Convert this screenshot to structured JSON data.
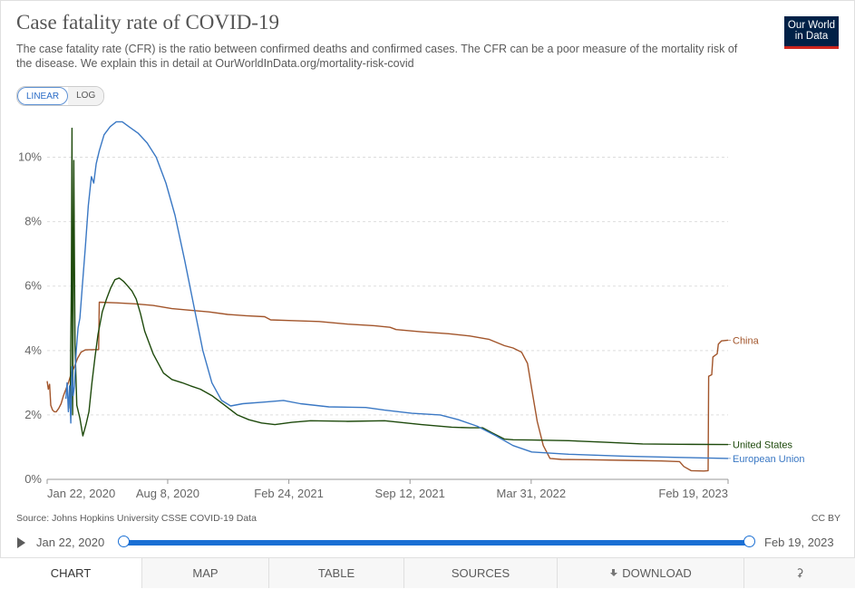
{
  "header": {
    "title": "Case fatality rate of COVID-19",
    "subtitle": "The case fatality rate (CFR) is the ratio between confirmed deaths and confirmed cases. The CFR can be a poor measure of the mortality risk of the disease. We explain this in detail at OurWorldInData.org/mortality-risk-covid",
    "logo_line1": "Our World",
    "logo_line2": "in Data"
  },
  "scale": {
    "linear": "LINEAR",
    "log": "LOG",
    "selected": "LINEAR"
  },
  "footer": {
    "source": "Source: Johns Hopkins University CSSE COVID-19 Data",
    "license": "CC BY"
  },
  "timeline": {
    "start": "Jan 22, 2020",
    "end": "Feb 19, 2023"
  },
  "tabs": {
    "chart": "CHART",
    "map": "MAP",
    "table": "TABLE",
    "sources": "SOURCES",
    "download": "DOWNLOAD"
  },
  "colors": {
    "china": "#a2552b",
    "united_states": "#1e4a0c",
    "european_union": "#3a78c4",
    "grid": "#dddddd",
    "accent": "#1a6fd4"
  },
  "chart_data": {
    "type": "line",
    "title": "Case fatality rate of COVID-19",
    "ylim": [
      0,
      11
    ],
    "yticks": [
      0,
      2,
      4,
      6,
      8,
      10
    ],
    "ytick_labels": [
      "0%",
      "2%",
      "4%",
      "6%",
      "8%",
      "10%"
    ],
    "xlim": [
      "2020-01-22",
      "2023-02-19"
    ],
    "xticks": [
      "2020-01-22",
      "2020-08-08",
      "2021-02-24",
      "2021-09-12",
      "2022-03-31",
      "2023-02-19"
    ],
    "xtick_labels": [
      "Jan 22, 2020",
      "Aug 8, 2020",
      "Feb 24, 2021",
      "Sep 12, 2021",
      "Mar 31, 2022",
      "Feb 19, 2023"
    ],
    "grid": true,
    "legend": "end-of-line labels",
    "series": [
      {
        "name": "China",
        "color": "#a2552b",
        "points": [
          [
            "2020-01-22",
            3.05
          ],
          [
            "2020-01-24",
            2.8
          ],
          [
            "2020-01-26",
            2.95
          ],
          [
            "2020-01-28",
            2.3
          ],
          [
            "2020-01-31",
            2.15
          ],
          [
            "2020-02-03",
            2.1
          ],
          [
            "2020-02-06",
            2.1
          ],
          [
            "2020-02-10",
            2.2
          ],
          [
            "2020-02-14",
            2.35
          ],
          [
            "2020-02-18",
            2.6
          ],
          [
            "2020-02-22",
            2.8
          ],
          [
            "2020-02-26",
            3.0
          ],
          [
            "2020-03-02",
            3.3
          ],
          [
            "2020-03-07",
            3.5
          ],
          [
            "2020-03-12",
            3.75
          ],
          [
            "2020-03-18",
            3.95
          ],
          [
            "2020-03-25",
            4.02
          ],
          [
            "2020-04-10",
            4.03
          ],
          [
            "2020-04-16",
            4.03
          ],
          [
            "2020-04-17",
            5.5
          ],
          [
            "2020-05-15",
            5.48
          ],
          [
            "2020-06-15",
            5.45
          ],
          [
            "2020-07-15",
            5.4
          ],
          [
            "2020-08-15",
            5.3
          ],
          [
            "2020-09-15",
            5.25
          ],
          [
            "2020-10-15",
            5.2
          ],
          [
            "2020-11-15",
            5.12
          ],
          [
            "2020-12-15",
            5.08
          ],
          [
            "2021-01-15",
            5.05
          ],
          [
            "2021-01-25",
            4.95
          ],
          [
            "2021-03-01",
            4.93
          ],
          [
            "2021-04-15",
            4.9
          ],
          [
            "2021-06-01",
            4.82
          ],
          [
            "2021-07-15",
            4.77
          ],
          [
            "2021-08-10",
            4.72
          ],
          [
            "2021-08-20",
            4.65
          ],
          [
            "2021-10-01",
            4.58
          ],
          [
            "2021-11-15",
            4.52
          ],
          [
            "2021-12-20",
            4.45
          ],
          [
            "2022-01-20",
            4.35
          ],
          [
            "2022-02-15",
            4.15
          ],
          [
            "2022-03-01",
            4.08
          ],
          [
            "2022-03-15",
            3.95
          ],
          [
            "2022-03-25",
            3.6
          ],
          [
            "2022-04-01",
            2.8
          ],
          [
            "2022-04-10",
            1.8
          ],
          [
            "2022-04-20",
            1.05
          ],
          [
            "2022-05-01",
            0.65
          ],
          [
            "2022-05-20",
            0.62
          ],
          [
            "2022-07-01",
            0.61
          ],
          [
            "2022-09-01",
            0.59
          ],
          [
            "2022-11-01",
            0.57
          ],
          [
            "2022-12-01",
            0.55
          ],
          [
            "2022-12-08",
            0.4
          ],
          [
            "2022-12-20",
            0.27
          ],
          [
            "2023-01-10",
            0.26
          ],
          [
            "2023-01-17",
            0.27
          ],
          [
            "2023-01-18",
            3.2
          ],
          [
            "2023-01-23",
            3.25
          ],
          [
            "2023-01-25",
            3.8
          ],
          [
            "2023-02-01",
            3.9
          ],
          [
            "2023-02-03",
            4.2
          ],
          [
            "2023-02-08",
            4.3
          ],
          [
            "2023-02-19",
            4.32
          ]
        ]
      },
      {
        "name": "United States",
        "color": "#1e4a0c",
        "points": [
          [
            "2020-02-29",
            2.2
          ],
          [
            "2020-03-02",
            6.0
          ],
          [
            "2020-03-03",
            10.9
          ],
          [
            "2020-03-04",
            2.0
          ],
          [
            "2020-03-06",
            9.9
          ],
          [
            "2020-03-08",
            4.2
          ],
          [
            "2020-03-11",
            2.3
          ],
          [
            "2020-03-16",
            1.9
          ],
          [
            "2020-03-21",
            1.35
          ],
          [
            "2020-03-26",
            1.7
          ],
          [
            "2020-03-31",
            2.1
          ],
          [
            "2020-04-05",
            3.0
          ],
          [
            "2020-04-10",
            3.8
          ],
          [
            "2020-04-15",
            4.5
          ],
          [
            "2020-04-22",
            5.2
          ],
          [
            "2020-04-29",
            5.6
          ],
          [
            "2020-05-06",
            5.95
          ],
          [
            "2020-05-13",
            6.2
          ],
          [
            "2020-05-20",
            6.25
          ],
          [
            "2020-05-27",
            6.15
          ],
          [
            "2020-06-03",
            6.0
          ],
          [
            "2020-06-10",
            5.85
          ],
          [
            "2020-06-17",
            5.6
          ],
          [
            "2020-06-24",
            5.15
          ],
          [
            "2020-07-01",
            4.6
          ],
          [
            "2020-07-15",
            3.9
          ],
          [
            "2020-08-01",
            3.3
          ],
          [
            "2020-08-15",
            3.1
          ],
          [
            "2020-09-01",
            3.0
          ],
          [
            "2020-09-15",
            2.9
          ],
          [
            "2020-10-01",
            2.8
          ],
          [
            "2020-10-20",
            2.6
          ],
          [
            "2020-11-10",
            2.3
          ],
          [
            "2020-12-01",
            2.0
          ],
          [
            "2020-12-20",
            1.85
          ],
          [
            "2021-01-10",
            1.75
          ],
          [
            "2021-02-01",
            1.7
          ],
          [
            "2021-03-01",
            1.77
          ],
          [
            "2021-04-01",
            1.82
          ],
          [
            "2021-06-01",
            1.8
          ],
          [
            "2021-08-01",
            1.82
          ],
          [
            "2021-10-01",
            1.7
          ],
          [
            "2021-11-20",
            1.62
          ],
          [
            "2021-12-20",
            1.6
          ],
          [
            "2022-01-10",
            1.6
          ],
          [
            "2022-01-25",
            1.45
          ],
          [
            "2022-02-15",
            1.25
          ],
          [
            "2022-03-01",
            1.23
          ],
          [
            "2022-04-01",
            1.22
          ],
          [
            "2022-06-01",
            1.2
          ],
          [
            "2022-08-01",
            1.15
          ],
          [
            "2022-10-01",
            1.1
          ],
          [
            "2022-12-01",
            1.09
          ],
          [
            "2023-02-19",
            1.08
          ]
        ]
      },
      {
        "name": "European Union",
        "color": "#3a78c4",
        "points": [
          [
            "2020-02-22",
            2.5
          ],
          [
            "2020-02-24",
            3.0
          ],
          [
            "2020-02-26",
            2.1
          ],
          [
            "2020-02-28",
            2.9
          ],
          [
            "2020-03-01",
            1.75
          ],
          [
            "2020-03-03",
            3.5
          ],
          [
            "2020-03-05",
            2.6
          ],
          [
            "2020-03-07",
            2.9
          ],
          [
            "2020-03-10",
            4.0
          ],
          [
            "2020-03-13",
            4.7
          ],
          [
            "2020-03-16",
            5.0
          ],
          [
            "2020-03-20",
            6.0
          ],
          [
            "2020-03-25",
            7.2
          ],
          [
            "2020-03-30",
            8.5
          ],
          [
            "2020-04-04",
            9.4
          ],
          [
            "2020-04-08",
            9.2
          ],
          [
            "2020-04-12",
            9.8
          ],
          [
            "2020-04-17",
            10.2
          ],
          [
            "2020-04-25",
            10.7
          ],
          [
            "2020-05-05",
            10.95
          ],
          [
            "2020-05-15",
            11.1
          ],
          [
            "2020-05-25",
            11.1
          ],
          [
            "2020-06-05",
            10.95
          ],
          [
            "2020-06-20",
            10.75
          ],
          [
            "2020-07-05",
            10.45
          ],
          [
            "2020-07-20",
            10.0
          ],
          [
            "2020-08-05",
            9.2
          ],
          [
            "2020-08-20",
            8.2
          ],
          [
            "2020-09-05",
            6.8
          ],
          [
            "2020-09-20",
            5.4
          ],
          [
            "2020-10-05",
            4.0
          ],
          [
            "2020-10-20",
            3.0
          ],
          [
            "2020-11-05",
            2.45
          ],
          [
            "2020-11-20",
            2.28
          ],
          [
            "2020-12-10",
            2.35
          ],
          [
            "2021-01-15",
            2.4
          ],
          [
            "2021-02-15",
            2.45
          ],
          [
            "2021-03-15",
            2.35
          ],
          [
            "2021-05-01",
            2.25
          ],
          [
            "2021-07-01",
            2.23
          ],
          [
            "2021-08-01",
            2.15
          ],
          [
            "2021-09-15",
            2.05
          ],
          [
            "2021-11-01",
            2.0
          ],
          [
            "2021-12-01",
            1.85
          ],
          [
            "2022-01-01",
            1.65
          ],
          [
            "2022-02-01",
            1.35
          ],
          [
            "2022-03-01",
            1.05
          ],
          [
            "2022-04-01",
            0.85
          ],
          [
            "2022-06-01",
            0.78
          ],
          [
            "2022-09-01",
            0.72
          ],
          [
            "2022-12-01",
            0.68
          ],
          [
            "2023-02-19",
            0.65
          ]
        ]
      }
    ]
  }
}
